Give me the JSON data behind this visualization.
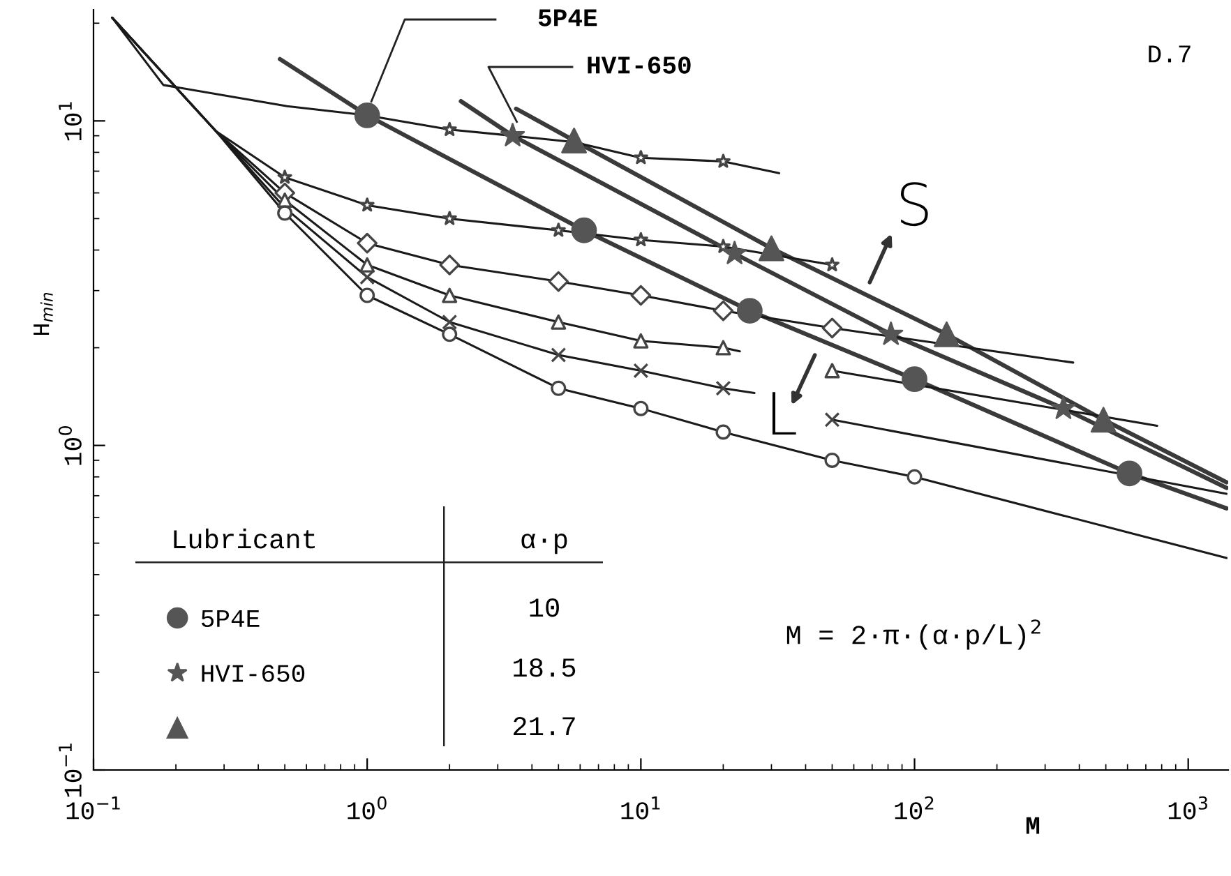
{
  "chart_data": {
    "type": "line",
    "xlabel": "M",
    "ylabel": "H$_{min}$",
    "log": "xy",
    "grid": false,
    "legend": "bottom left",
    "xlim": [
      0.1,
      1400
    ],
    "ylim": [
      0.1,
      22
    ],
    "xticks": [
      {
        "value": 0.1,
        "label": "10$^{−1}$"
      },
      {
        "value": 1,
        "label": "10$^{0}$"
      },
      {
        "value": 10,
        "label": "10$^{1}$"
      },
      {
        "value": 100,
        "label": "10$^{2}$"
      },
      {
        "value": 1000,
        "label": "10$^{3}$"
      }
    ],
    "yticks": [
      {
        "value": 0.1,
        "label": "10$^{−1}$"
      },
      {
        "value": 1,
        "label": "10$^{0}$"
      },
      {
        "value": 10,
        "label": "10$^{1}$"
      }
    ],
    "annotations": [
      "D.7",
      "S",
      "L",
      "M = 2·π·(α·p/L)$^{2}$",
      "Lubricant",
      "α·p",
      "10",
      "18.5",
      "21.7"
    ],
    "series": [
      {
        "color": "#3a3a3a",
        "marker": "none",
        "x": [
          0.48,
          1,
          6.2,
          25,
          100,
          610,
          1380
        ],
        "values": [
          15.5,
          10.4,
          4.6,
          2.6,
          1.6,
          0.82,
          0.64
        ]
      },
      {
        "color": "#3a3a3a",
        "marker": "none",
        "x": [
          2.2,
          3.4,
          22,
          82,
          350,
          1380
        ],
        "values": [
          11.5,
          9.0,
          3.9,
          2.2,
          1.3,
          0.74
        ]
      },
      {
        "color": "#3a3a3a",
        "marker": "none",
        "x": [
          3.5,
          5.7,
          30,
          131,
          490,
          1380
        ],
        "values": [
          10.9,
          8.7,
          4.05,
          2.2,
          1.2,
          0.77
        ]
      },
      {
        "color": "#1a1a1a",
        "marker": "none",
        "x": [
          0.117,
          0.18,
          0.51,
          1,
          2,
          3.4,
          5.7,
          10,
          20,
          32
        ],
        "values": [
          20.8,
          12.9,
          11.1,
          10.4,
          9.4,
          9.0,
          8.6,
          7.7,
          7.5,
          6.9
        ]
      },
      {
        "color": "#1a1a1a",
        "marker": "none",
        "x": [
          0.117,
          0.28,
          0.5,
          1,
          2,
          5,
          10,
          20,
          50
        ],
        "values": [
          20.8,
          9.3,
          6.7,
          5.5,
          5.0,
          4.6,
          4.3,
          4.1,
          3.6
        ]
      },
      {
        "color": "#1a1a1a",
        "marker": "none",
        "x": [
          0.117,
          0.28,
          0.5,
          1,
          2,
          5,
          10,
          20,
          50,
          380
        ],
        "values": [
          20.8,
          9.3,
          6.0,
          4.2,
          3.6,
          3.2,
          2.9,
          2.6,
          2.3,
          1.8
        ]
      },
      {
        "color": "#1a1a1a",
        "marker": "none",
        "x": [
          0.117,
          0.28,
          0.5,
          1,
          2,
          5,
          10,
          20,
          23
        ],
        "values": [
          20.8,
          9.3,
          5.7,
          3.6,
          2.9,
          2.4,
          2.1,
          2.0,
          1.95
        ]
      },
      {
        "color": "#1a1a1a",
        "marker": "none",
        "x": [
          50,
          770
        ],
        "values": [
          1.7,
          1.15
        ]
      },
      {
        "color": "#1a1a1a",
        "marker": "none",
        "x": [
          0.117,
          0.28,
          0.5,
          1,
          2,
          5,
          10,
          20,
          26
        ],
        "values": [
          20.8,
          9.3,
          5.4,
          3.3,
          2.4,
          1.9,
          1.7,
          1.5,
          1.45
        ]
      },
      {
        "color": "#1a1a1a",
        "marker": "none",
        "x": [
          50,
          1380
        ],
        "values": [
          1.2,
          0.71
        ]
      },
      {
        "color": "#1a1a1a",
        "marker": "none",
        "x": [
          0.117,
          0.28,
          0.5,
          1,
          2,
          5,
          10,
          20,
          50,
          100,
          1380
        ],
        "values": [
          20.8,
          9.3,
          5.2,
          2.9,
          2.2,
          1.5,
          1.3,
          1.1,
          0.9,
          0.8,
          0.45
        ]
      },
      {
        "type": "scatter",
        "name": "5P4E",
        "color": "#555555",
        "marker": "circle",
        "x": [
          1,
          6.2,
          25,
          100,
          610
        ],
        "values": [
          10.4,
          4.6,
          2.6,
          1.6,
          0.82
        ]
      },
      {
        "type": "scatter",
        "name": "HVI-650",
        "color": "#555555",
        "marker": "star",
        "x": [
          3.4,
          22,
          82,
          350
        ],
        "values": [
          9.0,
          3.9,
          2.2,
          1.3
        ]
      },
      {
        "type": "scatter",
        "color": "#555555",
        "marker": "triangle",
        "x": [
          5.7,
          30,
          131,
          490
        ],
        "values": [
          8.7,
          4.05,
          2.2,
          1.2
        ]
      },
      {
        "type": "scatter",
        "color": "#444444",
        "marker": "star",
        "x": [
          2,
          10,
          20
        ],
        "values": [
          9.4,
          7.7,
          7.5
        ]
      },
      {
        "type": "scatter",
        "color": "#444444",
        "marker": "star",
        "x": [
          0.5,
          1,
          2,
          5,
          10,
          20,
          50
        ],
        "values": [
          6.7,
          5.5,
          5.0,
          4.6,
          4.3,
          4.1,
          3.6
        ]
      },
      {
        "type": "scatter",
        "color": "#444444",
        "marker": "diamond",
        "x": [
          0.5,
          1,
          2,
          5,
          10,
          20,
          50
        ],
        "values": [
          6.0,
          4.2,
          3.6,
          3.2,
          2.9,
          2.6,
          2.3
        ]
      },
      {
        "type": "scatter",
        "color": "#444444",
        "marker": "triangle",
        "x": [
          0.5,
          1,
          2,
          5,
          10,
          20,
          50
        ],
        "values": [
          5.7,
          3.6,
          2.9,
          2.4,
          2.1,
          2.0,
          1.7
        ]
      },
      {
        "type": "scatter",
        "color": "#444444",
        "marker": "cross",
        "x": [
          1,
          2,
          5,
          10,
          20,
          50
        ],
        "values": [
          3.3,
          2.4,
          1.9,
          1.7,
          1.5,
          1.2
        ]
      },
      {
        "type": "scatter",
        "color": "#444444",
        "marker": "circle",
        "x": [
          0.5,
          1,
          2,
          5,
          10,
          20,
          50,
          100
        ],
        "values": [
          5.2,
          2.9,
          2.2,
          1.5,
          1.3,
          1.1,
          0.9,
          0.8
        ]
      }
    ]
  }
}
